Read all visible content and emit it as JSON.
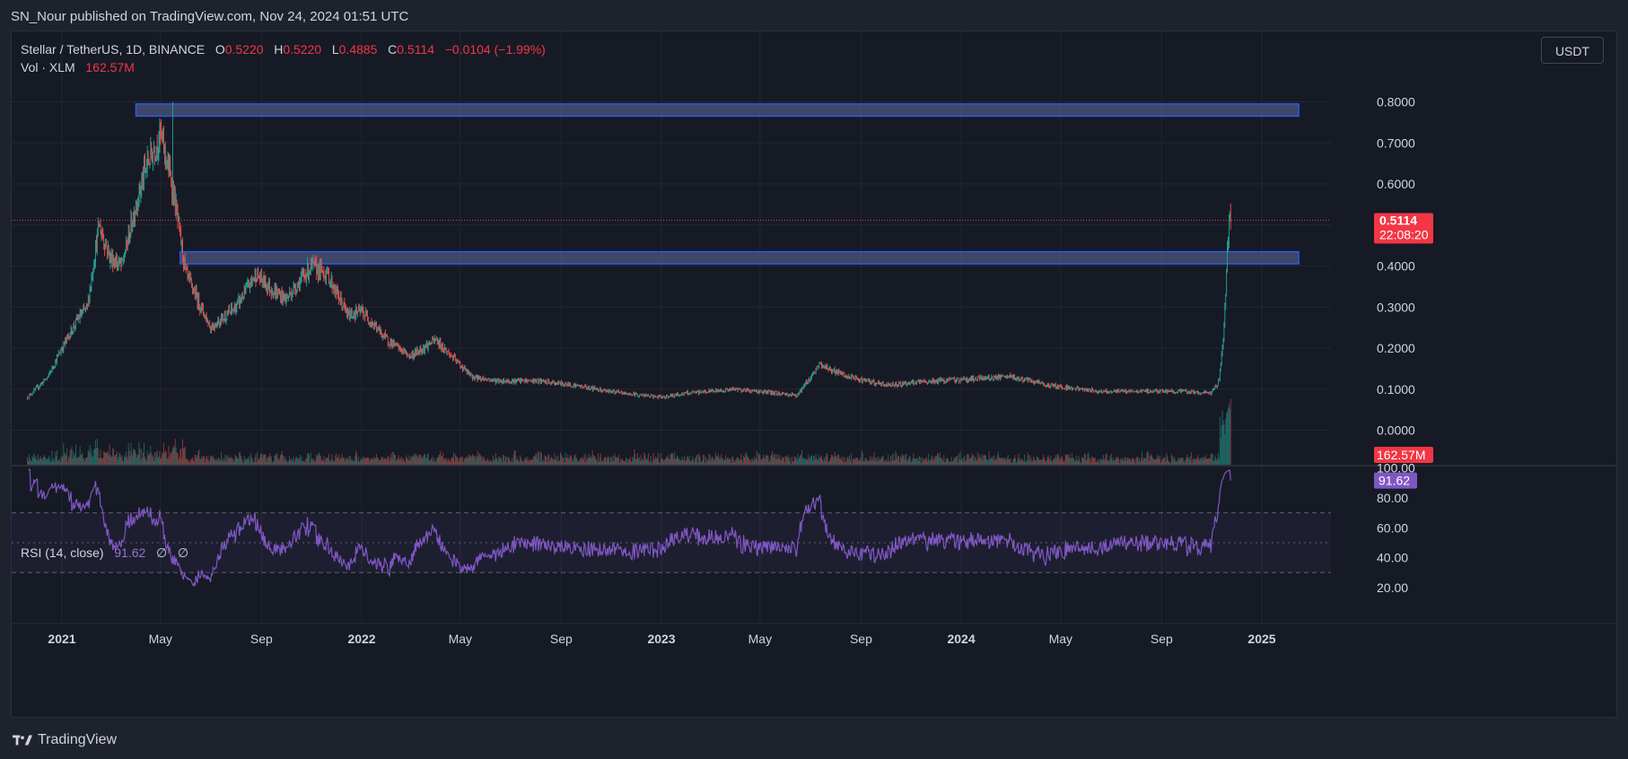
{
  "header": {
    "published_text": "SN_Nour published on TradingView.com, Nov 24, 2024 01:51 UTC"
  },
  "legend": {
    "symbol": "Stellar / TetherUS, 1D, BINANCE",
    "o_label": "O",
    "o_value": "0.5220",
    "h_label": "H",
    "h_value": "0.5220",
    "l_label": "L",
    "l_value": "0.4885",
    "c_label": "C",
    "c_value": "0.5114",
    "change": "−0.0104 (−1.99%)",
    "vol_label": "Vol · XLM",
    "vol_value": "162.57M"
  },
  "rsi_legend": {
    "label": "RSI (14, close)",
    "value": "91.62",
    "extra1": "∅",
    "extra2": "∅"
  },
  "currency_button": "USDT",
  "footer": {
    "brand": "TradingView"
  },
  "colors": {
    "up": "#26a69a",
    "down": "#ef5350",
    "zone": "#2962ff",
    "rsi": "#7e57c2",
    "price_badge": "#f23645",
    "rsi_badge": "#7e57c2"
  },
  "chart_data": [
    {
      "type": "candlestick",
      "series": [
        {
          "name": "Stellar / TetherUS, 1D, BINANCE"
        }
      ],
      "y_ticks": [
        "0.8000",
        "0.7000",
        "0.6000",
        "0.5000",
        "0.4000",
        "0.3000",
        "0.2000",
        "0.1000",
        "0.0000"
      ],
      "y_tick_values": [
        0.8,
        0.7,
        0.6,
        0.5,
        0.4,
        0.3,
        0.2,
        0.1,
        0.0
      ],
      "x_ticks": [
        "2021",
        "May",
        "Sep",
        "2022",
        "May",
        "Sep",
        "2023",
        "May",
        "Sep",
        "2024",
        "May",
        "Sep",
        "2025"
      ],
      "x_tick_dates": [
        "2021-01-01",
        "2021-05-01",
        "2021-09-01",
        "2022-01-01",
        "2022-05-01",
        "2022-09-01",
        "2023-01-01",
        "2023-05-01",
        "2023-09-01",
        "2024-01-01",
        "2024-05-01",
        "2024-09-01",
        "2025-01-01"
      ],
      "close_path": [
        {
          "date": "2020-11-20",
          "close": 0.08
        },
        {
          "date": "2020-12-15",
          "close": 0.13
        },
        {
          "date": "2021-01-01",
          "close": 0.2
        },
        {
          "date": "2021-01-20",
          "close": 0.27
        },
        {
          "date": "2021-02-01",
          "close": 0.3
        },
        {
          "date": "2021-02-15",
          "close": 0.5
        },
        {
          "date": "2021-03-01",
          "close": 0.42
        },
        {
          "date": "2021-03-15",
          "close": 0.4
        },
        {
          "date": "2021-04-01",
          "close": 0.55
        },
        {
          "date": "2021-04-15",
          "close": 0.65
        },
        {
          "date": "2021-05-01",
          "close": 0.72
        },
        {
          "date": "2021-05-15",
          "close": 0.6
        },
        {
          "date": "2021-06-01",
          "close": 0.38
        },
        {
          "date": "2021-07-01",
          "close": 0.25
        },
        {
          "date": "2021-08-01",
          "close": 0.3
        },
        {
          "date": "2021-08-25",
          "close": 0.38
        },
        {
          "date": "2021-09-15",
          "close": 0.34
        },
        {
          "date": "2021-10-01",
          "close": 0.32
        },
        {
          "date": "2021-11-01",
          "close": 0.4
        },
        {
          "date": "2021-11-20",
          "close": 0.38
        },
        {
          "date": "2021-12-15",
          "close": 0.28
        },
        {
          "date": "2022-01-01",
          "close": 0.29
        },
        {
          "date": "2022-02-01",
          "close": 0.22
        },
        {
          "date": "2022-03-01",
          "close": 0.18
        },
        {
          "date": "2022-04-01",
          "close": 0.22
        },
        {
          "date": "2022-05-15",
          "close": 0.13
        },
        {
          "date": "2022-06-15",
          "close": 0.12
        },
        {
          "date": "2022-08-01",
          "close": 0.12
        },
        {
          "date": "2022-09-15",
          "close": 0.11
        },
        {
          "date": "2022-11-15",
          "close": 0.09
        },
        {
          "date": "2022-12-31",
          "close": 0.08
        },
        {
          "date": "2023-02-01",
          "close": 0.09
        },
        {
          "date": "2023-04-01",
          "close": 0.1
        },
        {
          "date": "2023-06-15",
          "close": 0.085
        },
        {
          "date": "2023-07-13",
          "close": 0.16
        },
        {
          "date": "2023-08-15",
          "close": 0.13
        },
        {
          "date": "2023-10-01",
          "close": 0.11
        },
        {
          "date": "2023-12-01",
          "close": 0.12
        },
        {
          "date": "2024-03-01",
          "close": 0.13
        },
        {
          "date": "2024-04-15",
          "close": 0.11
        },
        {
          "date": "2024-06-15",
          "close": 0.095
        },
        {
          "date": "2024-09-15",
          "close": 0.095
        },
        {
          "date": "2024-10-31",
          "close": 0.09
        },
        {
          "date": "2024-11-10",
          "close": 0.12
        },
        {
          "date": "2024-11-16",
          "close": 0.25
        },
        {
          "date": "2024-11-22",
          "close": 0.52
        },
        {
          "date": "2024-11-24",
          "close": 0.5114
        }
      ],
      "peak": {
        "date": "2021-05-16",
        "high": 0.8
      },
      "last_price": 0.5114,
      "last_price_label": "0.5114",
      "countdown_label": "22:08:20",
      "zones": [
        {
          "from": "2021-04-01",
          "to": "2025-02-15",
          "low": 0.765,
          "high": 0.795
        },
        {
          "from": "2021-05-25",
          "to": "2025-02-15",
          "low": 0.405,
          "high": 0.435
        }
      ],
      "volume_last_label": "162.57M"
    },
    {
      "type": "line",
      "series": [
        {
          "name": "RSI (14, close)"
        }
      ],
      "y_ticks": [
        "100.00",
        "80.00",
        "60.00",
        "40.00",
        "20.00"
      ],
      "y_tick_values": [
        100,
        80,
        60,
        40,
        20
      ],
      "bands": [
        70,
        50,
        30
      ],
      "last_value": 91.62,
      "last_value_label": "91.62",
      "ylim": [
        20,
        100
      ]
    }
  ]
}
